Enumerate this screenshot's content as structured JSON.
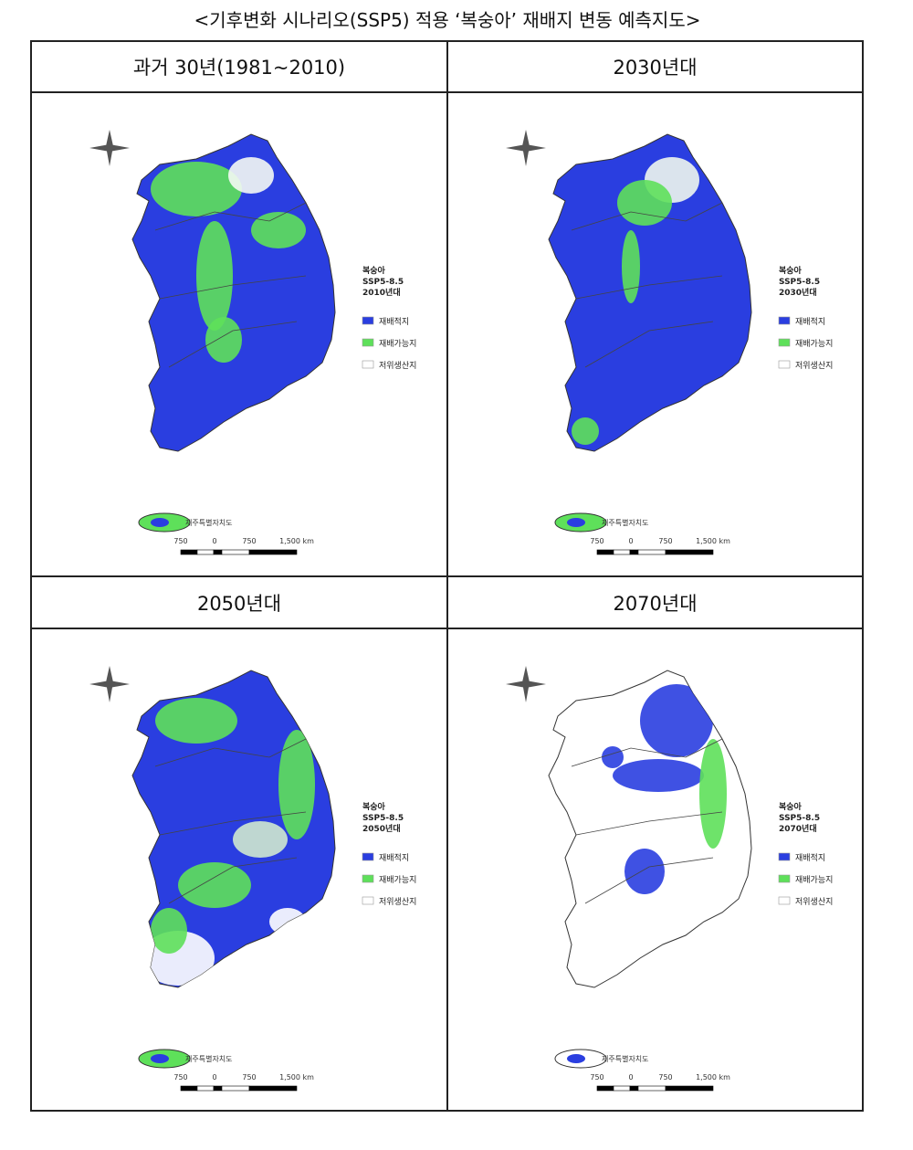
{
  "title": "<기후변화 시나리오(SSP5) 적용 ‘복숭아’ 재배지 변동 예측지도>",
  "panels": [
    {
      "header": "과거 30년(1981~2010)",
      "legend": {
        "crop": "복숭아",
        "scenario": "SSP5-8.5",
        "period": "2010년대",
        "items": [
          "재배적지",
          "재배가능지",
          "저위생산지"
        ]
      },
      "jeju_label": "제주특별자치도",
      "scale": [
        "750",
        "0",
        "750",
        "1,500 km"
      ]
    },
    {
      "header": "2030년대",
      "legend": {
        "crop": "복숭아",
        "scenario": "SSP5-8.5",
        "period": "2030년대",
        "items": [
          "재배적지",
          "재배가능지",
          "저위생산지"
        ]
      },
      "jeju_label": "제주특별자치도",
      "scale": [
        "750",
        "0",
        "750",
        "1,500 km"
      ]
    },
    {
      "header": "2050년대",
      "legend": {
        "crop": "복숭아",
        "scenario": "SSP5-8.5",
        "period": "2050년대",
        "items": [
          "재배적지",
          "재배가능지",
          "저위생산지"
        ]
      },
      "jeju_label": "제주특별자치도",
      "scale": [
        "750",
        "0",
        "750",
        "1,500 km"
      ]
    },
    {
      "header": "2070년대",
      "legend": {
        "crop": "복숭아",
        "scenario": "SSP5-8.5",
        "period": "2070년대",
        "items": [
          "재배적지",
          "재배가능지",
          "저위생산지"
        ]
      },
      "jeju_label": "제주특별자치도",
      "scale": [
        "750",
        "0",
        "750",
        "1,500 km"
      ]
    }
  ]
}
